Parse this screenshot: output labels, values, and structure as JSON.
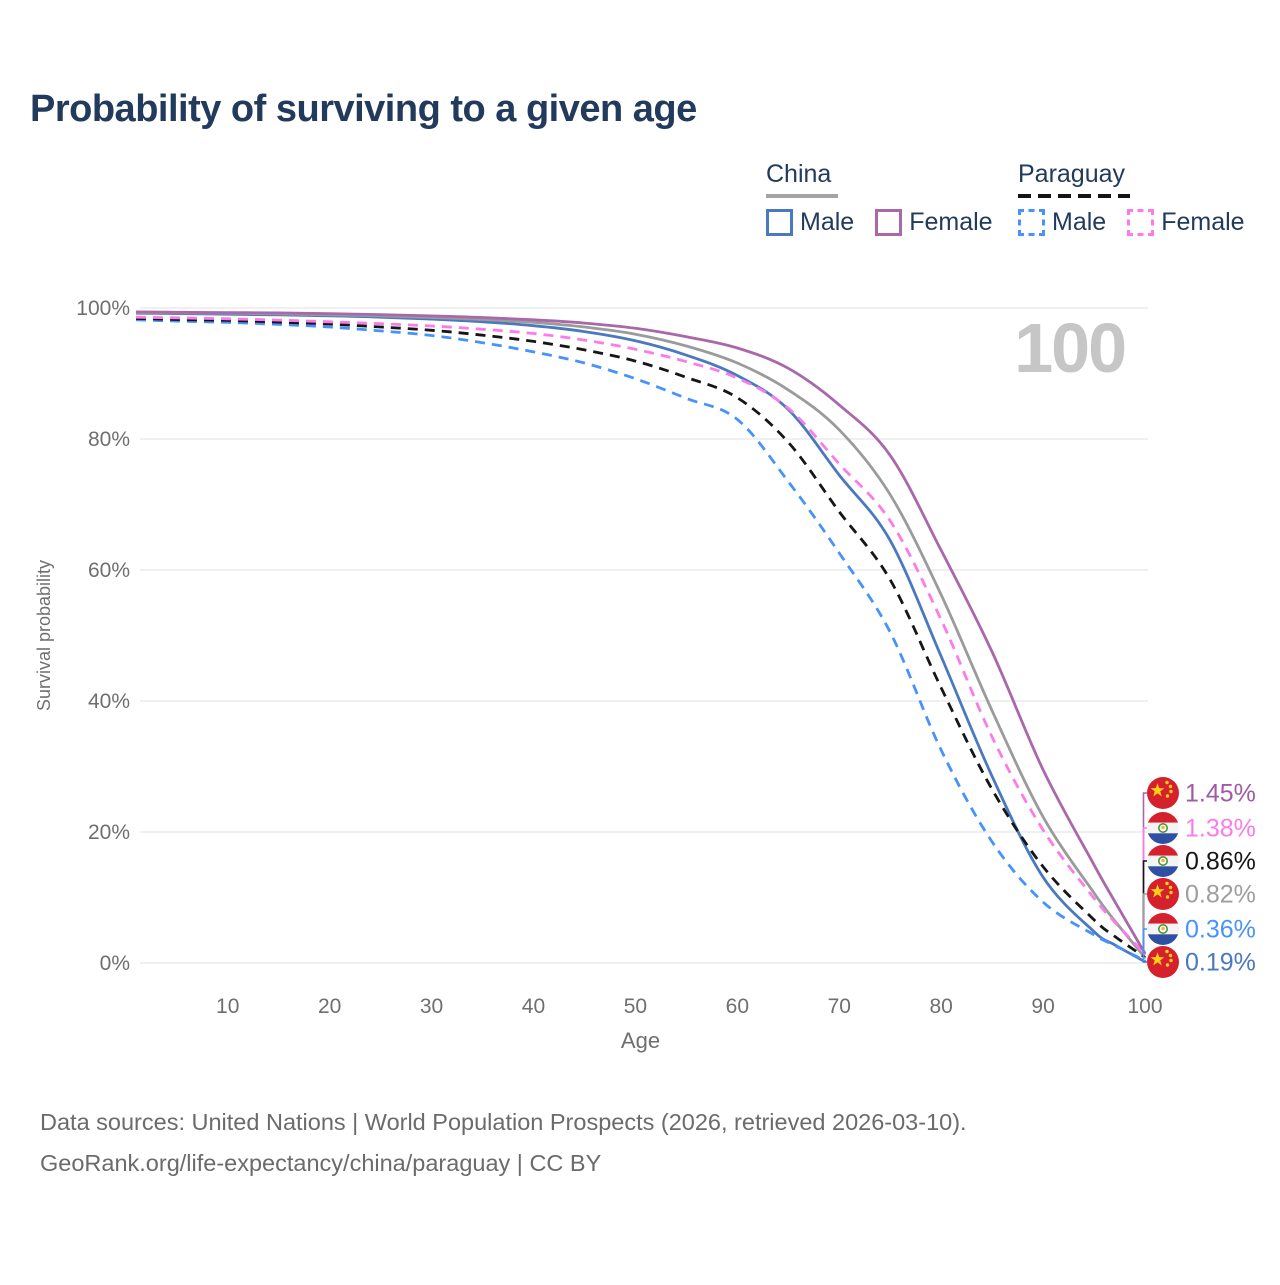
{
  "title": "Probability of surviving to a given age",
  "hovered_age_indicator": "100",
  "legend": {
    "groups": [
      {
        "name": "China",
        "line_style": "solid",
        "items": [
          {
            "label": "Male",
            "color": "#4a79c0"
          },
          {
            "label": "Female",
            "color": "#a868aa"
          }
        ]
      },
      {
        "name": "Paraguay",
        "line_style": "dashed",
        "items": [
          {
            "label": "Male",
            "color": "#4793fb"
          },
          {
            "label": "Female",
            "color": "#fb7ce8"
          }
        ]
      }
    ]
  },
  "chart_data": {
    "type": "line",
    "title": "Probability of surviving to a given age",
    "xlabel": "Age",
    "ylabel": "Survival probability",
    "xlim": [
      1,
      100
    ],
    "ylim": [
      0,
      100
    ],
    "grid": "horizontal",
    "legend_position": "top-right",
    "x_ticks": [
      10,
      20,
      30,
      40,
      50,
      60,
      70,
      80,
      90,
      100
    ],
    "y_ticks": [
      {
        "value": 0,
        "label": "0%"
      },
      {
        "value": 20,
        "label": "20%"
      },
      {
        "value": 40,
        "label": "40%"
      },
      {
        "value": 60,
        "label": "60%"
      },
      {
        "value": 80,
        "label": "80%"
      },
      {
        "value": 100,
        "label": "100%"
      }
    ],
    "x": [
      1,
      5,
      10,
      15,
      20,
      25,
      30,
      35,
      40,
      45,
      50,
      55,
      60,
      65,
      70,
      75,
      80,
      85,
      90,
      95,
      97,
      100
    ],
    "series": [
      {
        "id": "china-male",
        "name": "China Male",
        "country": "China",
        "sex": "Male",
        "color": "#4a79c0",
        "dash": "solid",
        "flag": "china",
        "end_value_label": "0.19%",
        "end_label_color": "#4a79c0",
        "values": [
          99.2,
          99.15,
          99.05,
          98.95,
          98.8,
          98.6,
          98.3,
          97.9,
          97.3,
          96.4,
          95.0,
          92.8,
          89.7,
          84.5,
          74.5,
          64.5,
          46.8,
          28.5,
          13.1,
          4.8,
          2.8,
          0.19
        ]
      },
      {
        "id": "china-total",
        "name": "China Both sexes",
        "country": "China",
        "sex": "Total",
        "color": "#9b9b9b",
        "dash": "solid",
        "flag": "china",
        "end_value_label": "0.82%",
        "end_label_color": "#9e9e9e",
        "values": [
          99.3,
          99.25,
          99.2,
          99.1,
          98.95,
          98.8,
          98.55,
          98.25,
          97.8,
          97.1,
          96.0,
          94.2,
          91.6,
          87.5,
          81.4,
          71.5,
          56.2,
          38.5,
          22.3,
          10.7,
          6.5,
          0.82
        ]
      },
      {
        "id": "paraguay-male",
        "name": "Paraguay Male",
        "country": "Paraguay",
        "sex": "Male",
        "color": "#4793fb",
        "dash": "dashed",
        "flag": "paraguay",
        "end_value_label": "0.36%",
        "end_label_color": "#4793fb",
        "values": [
          98.2,
          98.0,
          97.8,
          97.5,
          97.1,
          96.5,
          95.8,
          94.7,
          93.3,
          91.6,
          89.2,
          86.2,
          83.0,
          73.5,
          62.6,
          50.5,
          32.5,
          18.5,
          9.3,
          4.3,
          2.7,
          0.36
        ]
      },
      {
        "id": "paraguay-total",
        "name": "Paraguay Both sexes",
        "country": "Paraguay",
        "sex": "Total",
        "color": "#161616",
        "dash": "dashed",
        "flag": "paraguay",
        "end_value_label": "0.86%",
        "end_label_color": "#161616",
        "values": [
          98.4,
          98.25,
          98.1,
          97.85,
          97.55,
          97.1,
          96.6,
          95.85,
          94.9,
          93.6,
          91.9,
          89.4,
          86.3,
          79.5,
          68.9,
          58.5,
          42.0,
          26.5,
          14.7,
          6.6,
          4.1,
          0.86
        ]
      },
      {
        "id": "paraguay-female",
        "name": "Paraguay Female",
        "country": "Paraguay",
        "sex": "Female",
        "color": "#fb7ce8",
        "dash": "dashed",
        "flag": "paraguay",
        "end_value_label": "1.38%",
        "end_label_color": "#fb7ce8",
        "values": [
          98.6,
          98.5,
          98.35,
          98.15,
          97.9,
          97.6,
          97.25,
          96.75,
          96.1,
          95.1,
          93.7,
          91.8,
          89.3,
          84.7,
          76.2,
          67.5,
          52.4,
          34.5,
          20.3,
          9.9,
          6.3,
          1.38
        ]
      },
      {
        "id": "china-female",
        "name": "China Female",
        "country": "China",
        "sex": "Female",
        "color": "#a868aa",
        "dash": "solid",
        "flag": "china",
        "end_value_label": "1.45%",
        "end_label_color": "#a05aa5",
        "values": [
          99.4,
          99.35,
          99.3,
          99.25,
          99.15,
          99.0,
          98.8,
          98.55,
          98.2,
          97.7,
          96.9,
          95.6,
          93.9,
          90.8,
          85.2,
          77.5,
          63.0,
          47.5,
          29.5,
          15.0,
          9.5,
          1.45
        ]
      }
    ]
  },
  "footer": {
    "line1": "Data sources: United Nations | World Population Prospects (2026, retrieved 2026-03-10).",
    "line2": "GeoRank.org/life-expectancy/china/paraguay | CC BY"
  }
}
